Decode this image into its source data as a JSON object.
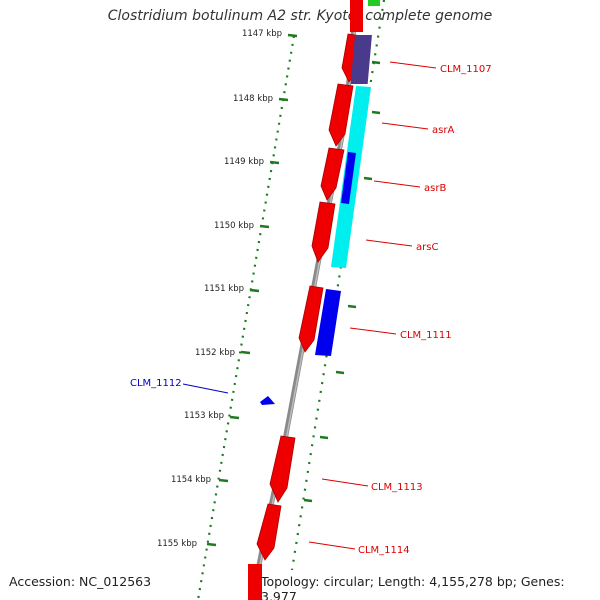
{
  "title": "Clostridium botulinum A2 str. Kyoto, complete genome",
  "footer": {
    "accession": "Accession: NC_012563",
    "stats": "Topology: circular; Length: 4,155,278 bp; Genes: 3,977"
  },
  "colors": {
    "backbone": "#8a8a8a",
    "tick": "#1f7a1f",
    "gene_red": "#ee0000",
    "gene_blue": "#0000ee",
    "gene_navy": "#4a3a8c",
    "region_cyan": "#00eeee",
    "region_green": "#22cc22",
    "label_red": "#dd0000",
    "label_blue": "#0000cc"
  },
  "ruler": {
    "unit": "kbp",
    "ticks": [
      "1147 kbp",
      "1148 kbp",
      "1149 kbp",
      "1150 kbp",
      "1151 kbp",
      "1152 kbp",
      "1153 kbp",
      "1154 kbp",
      "1155 kbp"
    ]
  },
  "gene_labels": [
    {
      "name": "CLM_1107",
      "color": "red"
    },
    {
      "name": "asrA",
      "color": "red"
    },
    {
      "name": "asrB",
      "color": "red"
    },
    {
      "name": "arsC",
      "color": "red"
    },
    {
      "name": "CLM_1111",
      "color": "red"
    },
    {
      "name": "CLM_1112",
      "color": "blue"
    },
    {
      "name": "CLM_1113",
      "color": "red"
    },
    {
      "name": "CLM_1114",
      "color": "red"
    }
  ]
}
